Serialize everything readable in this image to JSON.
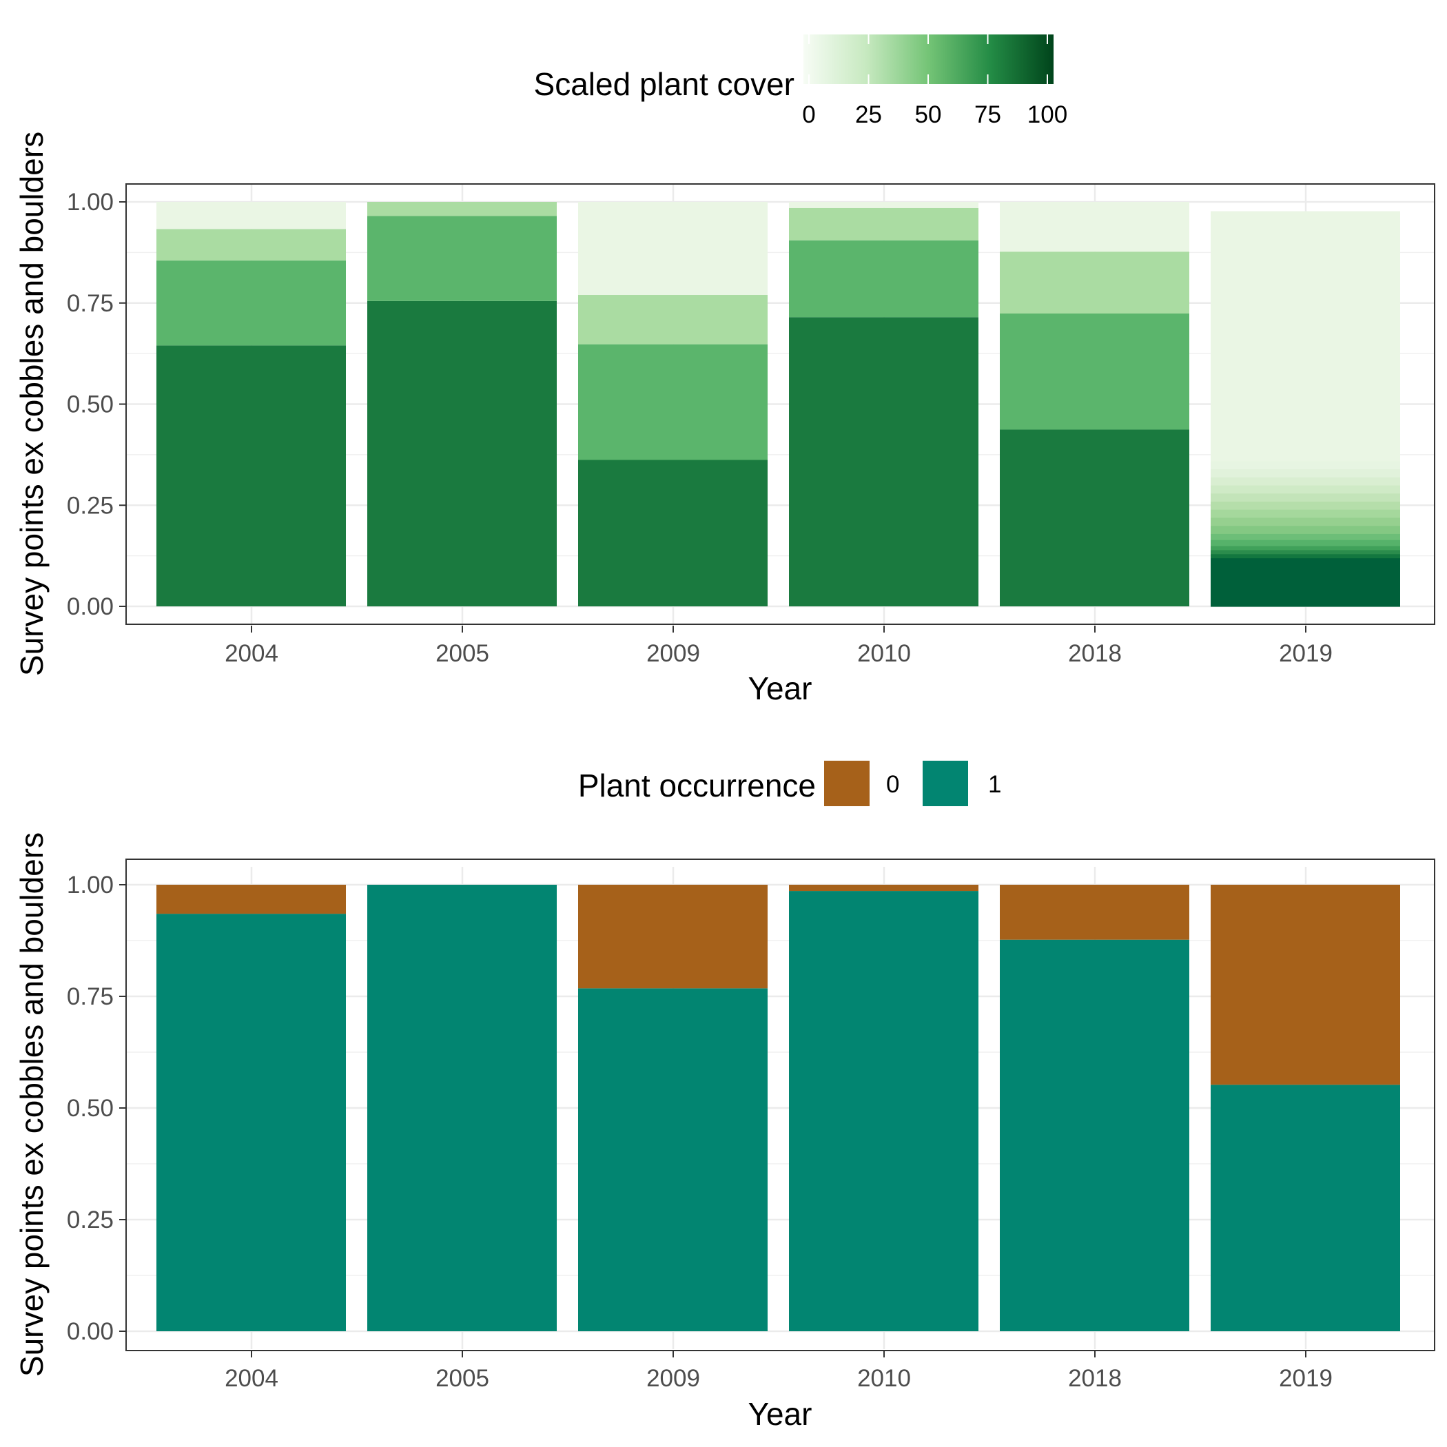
{
  "chart_data": [
    {
      "type": "bar",
      "stacked": true,
      "categories": [
        "2004",
        "2005",
        "2009",
        "2010",
        "2018",
        "2019"
      ],
      "series": [
        {
          "key": "100",
          "color": "#1a7a3f",
          "values": [
            0.645,
            0.755,
            0.362,
            0.715,
            0.437,
            0.0
          ]
        },
        {
          "key": "75",
          "color": "#5bb56c",
          "values": [
            0.21,
            0.21,
            0.286,
            0.19,
            0.287,
            0.0
          ]
        },
        {
          "key": "50",
          "color": "#aadca2",
          "values": [
            0.078,
            0.035,
            0.122,
            0.08,
            0.153,
            0.0
          ]
        },
        {
          "key": "0",
          "color": "#eaf6e4",
          "values": [
            0.067,
            0.0,
            0.23,
            0.015,
            0.123,
            0.0
          ]
        }
      ],
      "gradient_bar": {
        "category": "2019",
        "bands": [
          {
            "value": 0.12,
            "color": "#00603a"
          },
          {
            "value": 0.01,
            "color": "#13773f"
          },
          {
            "value": 0.01,
            "color": "#2b8c4c"
          },
          {
            "value": 0.01,
            "color": "#40a15a"
          },
          {
            "value": 0.015,
            "color": "#56b26a"
          },
          {
            "value": 0.015,
            "color": "#6dbe78"
          },
          {
            "value": 0.02,
            "color": "#84c883"
          },
          {
            "value": 0.02,
            "color": "#96d08f"
          },
          {
            "value": 0.02,
            "color": "#a5d89c"
          },
          {
            "value": 0.02,
            "color": "#b5deaa"
          },
          {
            "value": 0.02,
            "color": "#c3e4b9"
          },
          {
            "value": 0.02,
            "color": "#cfeac6"
          },
          {
            "value": 0.02,
            "color": "#d9eed1"
          },
          {
            "value": 0.02,
            "color": "#e1f2db"
          },
          {
            "value": 0.02,
            "color": "#e7f5e2"
          },
          {
            "value": 0.617,
            "color": "#eaf6e4"
          }
        ]
      },
      "ylabel": "Survey points ex cobbles and boulders",
      "xlabel": "Year",
      "ylim": [
        0,
        1
      ],
      "yticks": [
        "0.00",
        "0.25",
        "0.50",
        "0.75",
        "1.00"
      ],
      "grid": true,
      "legend": {
        "title": "Scaled plant cover",
        "position": "top",
        "type": "colorbar",
        "ticks": [
          "0",
          "25",
          "50",
          "75",
          "100"
        ],
        "colors": [
          "#f7fcf5",
          "#c7e9c0",
          "#74c476",
          "#238b45",
          "#00441b"
        ]
      }
    },
    {
      "type": "bar",
      "stacked": true,
      "categories": [
        "2004",
        "2005",
        "2009",
        "2010",
        "2018",
        "2019"
      ],
      "series": [
        {
          "name": "1",
          "color": "#028571",
          "values": [
            0.935,
            1.0,
            0.768,
            0.986,
            0.877,
            0.552
          ]
        },
        {
          "name": "0",
          "color": "#a6611a",
          "values": [
            0.065,
            0.0,
            0.232,
            0.014,
            0.123,
            0.448
          ]
        }
      ],
      "ylabel": "Survey points ex cobbles and boulders",
      "xlabel": "Year",
      "ylim": [
        0,
        1
      ],
      "yticks": [
        "0.00",
        "0.25",
        "0.50",
        "0.75",
        "1.00"
      ],
      "grid": true,
      "legend": {
        "title": "Plant occurrence",
        "position": "top",
        "items": [
          {
            "label": "0",
            "color": "#a6611a"
          },
          {
            "label": "1",
            "color": "#028571"
          }
        ]
      }
    }
  ]
}
